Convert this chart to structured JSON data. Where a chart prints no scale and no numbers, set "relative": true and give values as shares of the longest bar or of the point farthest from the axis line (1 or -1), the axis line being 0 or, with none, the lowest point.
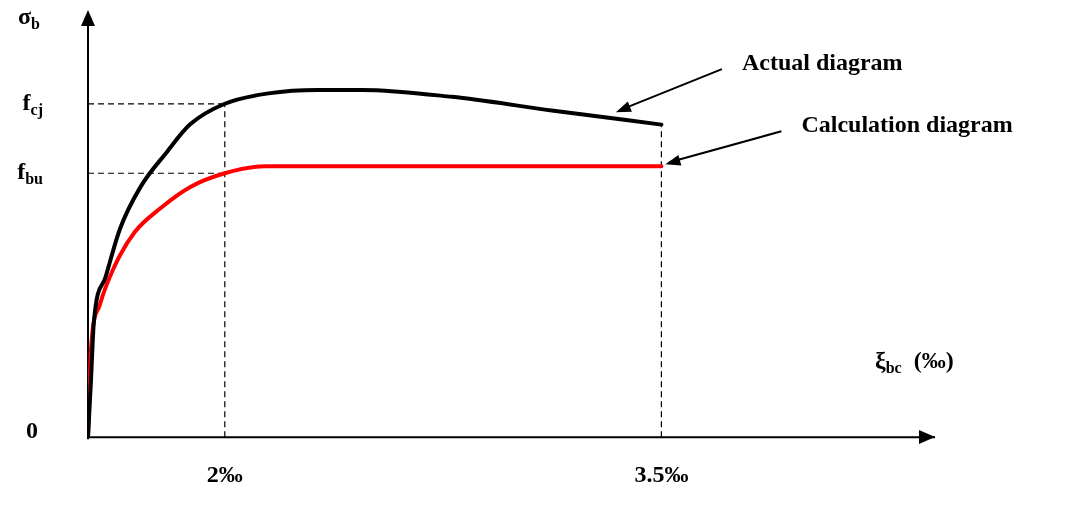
{
  "chart_data": {
    "type": "line",
    "relative": true,
    "xlabel": "ξ$_{bc}$  (‰)",
    "ylabel": "σ$_{b}$",
    "xlim": [
      1.53,
      4.44
    ],
    "xticks": [
      {
        "value": 2,
        "label": "2‰"
      },
      {
        "value": 3.5,
        "label": "3.5‰"
      }
    ],
    "series": [
      {
        "color": "#000000",
        "x": [
          1.53,
          1.54,
          1.55,
          1.59,
          1.64,
          1.71,
          1.8,
          1.88,
          2.0,
          2.15,
          2.32,
          2.47,
          2.78,
          3.13,
          3.5
        ],
        "values": [
          0,
          0.16,
          0.33,
          0.46,
          0.6,
          0.72,
          0.82,
          0.9,
          0.96,
          0.99,
          1.0,
          1.0,
          0.98,
          0.94,
          0.9
        ]
      },
      {
        "color": "#ff0000",
        "x": [
          1.53,
          1.54,
          1.57,
          1.62,
          1.69,
          1.78,
          1.88,
          2.0,
          2.14,
          3.5
        ],
        "values": [
          0,
          0.25,
          0.38,
          0.49,
          0.59,
          0.66,
          0.72,
          0.76,
          0.78,
          0.78
        ]
      }
    ],
    "ref_lines": [
      {
        "axis": "y",
        "value": 0.96,
        "label": "f$_{cj}$",
        "line_style": "dashed"
      },
      {
        "axis": "y",
        "value": 0.76,
        "label": "f$_{bu}$",
        "line_style": "dashed"
      },
      {
        "axis": "x",
        "value": 2,
        "line_style": "dashed"
      },
      {
        "axis": "x",
        "value": 3.5,
        "line_style": "dashed"
      }
    ],
    "annotations": [
      {
        "text": "0"
      },
      {
        "text": "Actual diagram",
        "x": 3.33,
        "y": 0.93
      },
      {
        "text": "Calculation diagram",
        "x": 3.5,
        "y": 0.78
      }
    ],
    "legend": false,
    "grid": false,
    "marker": "none",
    "line_style": "solid"
  }
}
